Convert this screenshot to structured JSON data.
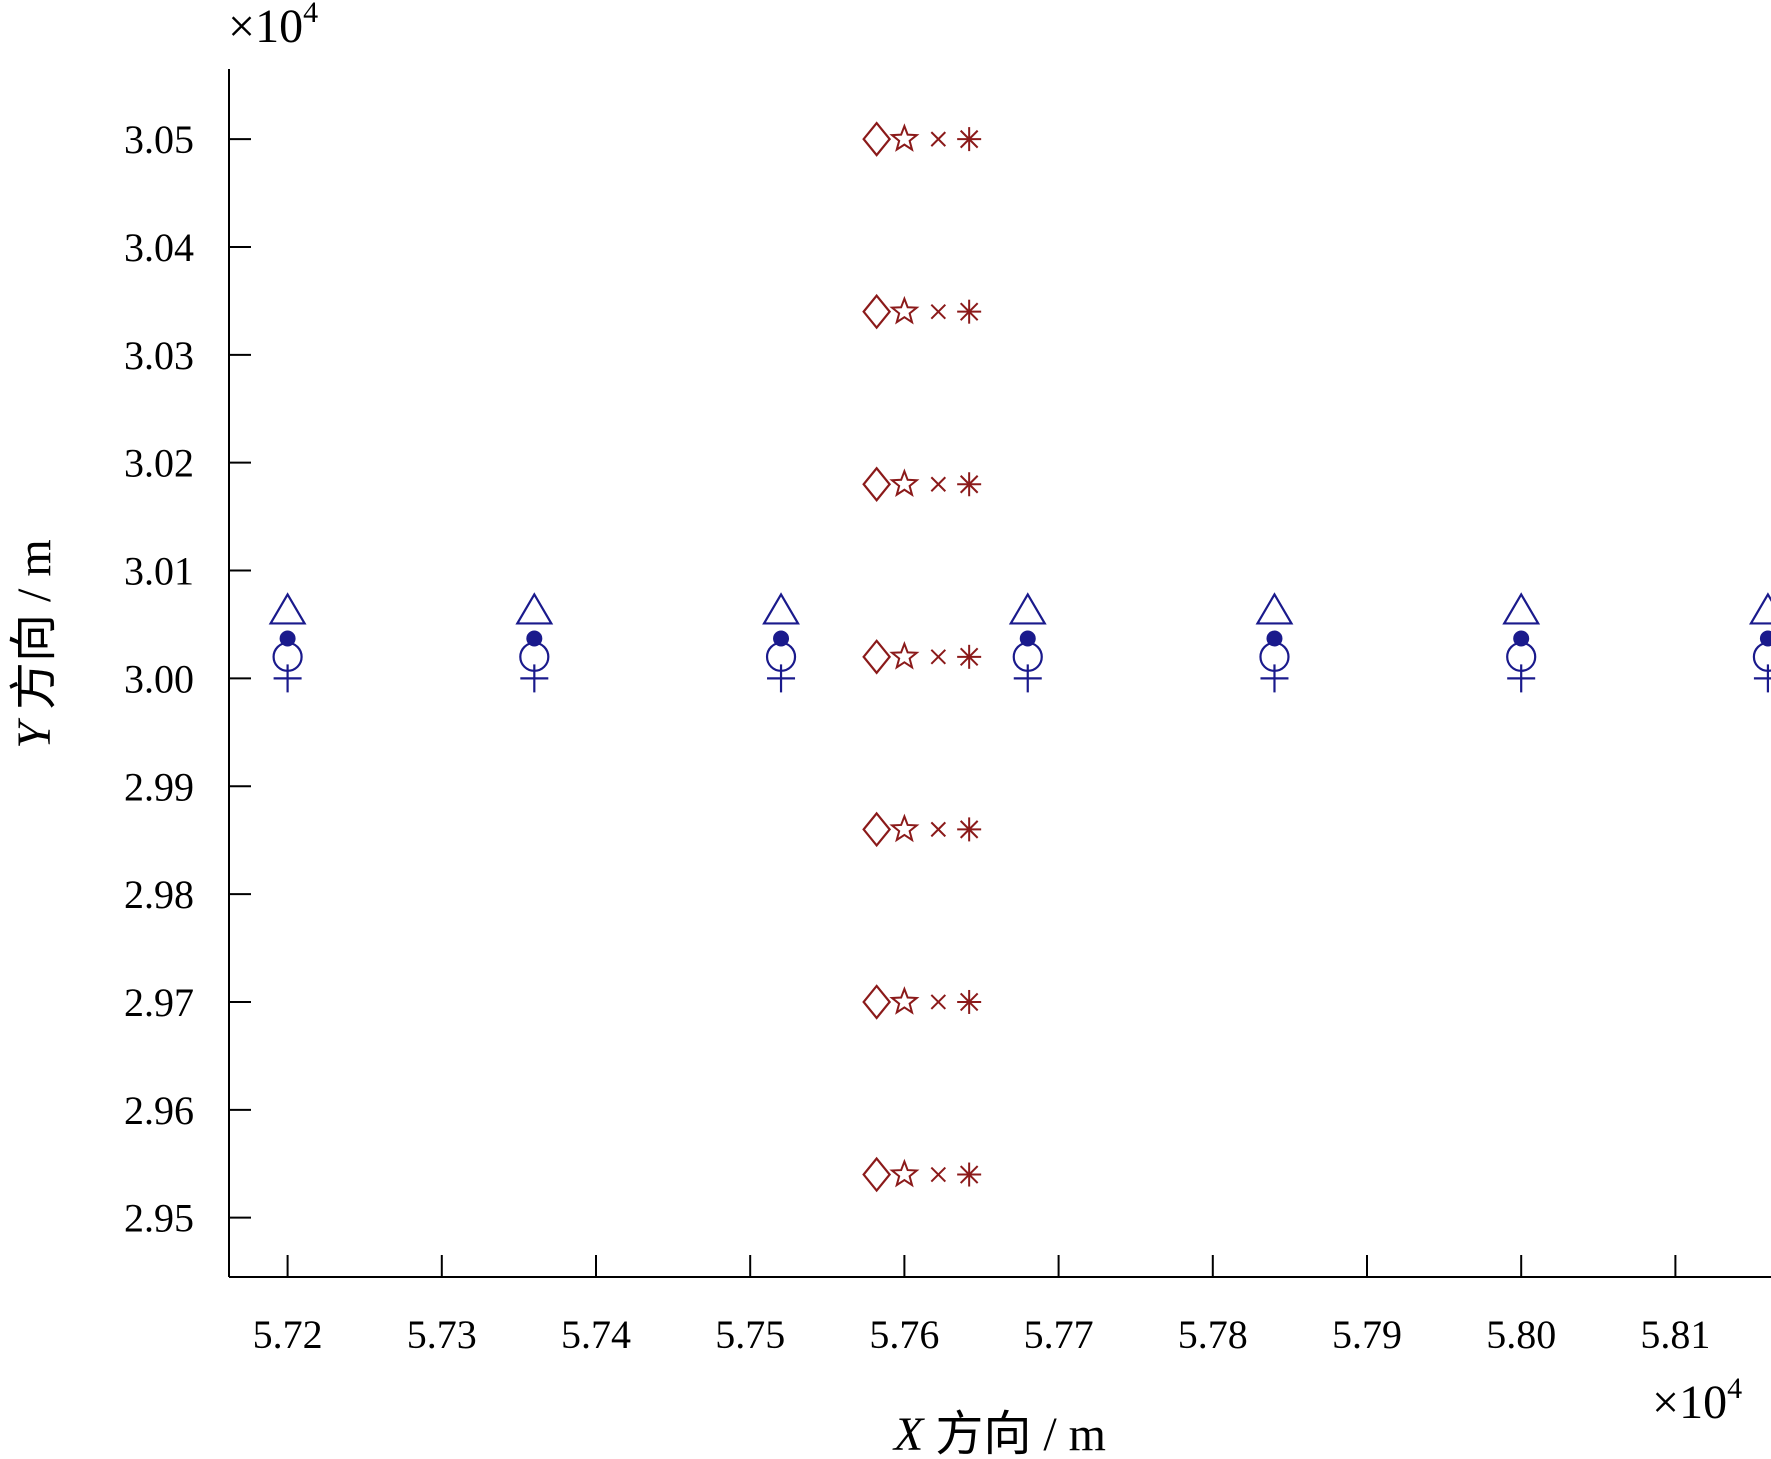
{
  "chart_data": {
    "type": "scatter",
    "title": "",
    "xlabel": {
      "var": "X",
      "text": " 方向 / m"
    },
    "ylabel": {
      "var": "Y",
      "text": " 方向 / m"
    },
    "x_multiplier": {
      "base": "×10",
      "exp": "4"
    },
    "y_multiplier": {
      "base": "×10",
      "exp": "4"
    },
    "xlim": [
      57162,
      58162
    ],
    "ylim": [
      29445,
      30565
    ],
    "x_ticks": [
      57200,
      57300,
      57400,
      57500,
      57600,
      57700,
      57800,
      57900,
      58000,
      58100
    ],
    "x_tick_labels": [
      "5.72",
      "5.73",
      "5.74",
      "5.75",
      "5.76",
      "5.77",
      "5.78",
      "5.79",
      "5.80",
      "5.81"
    ],
    "y_ticks": [
      29500,
      29600,
      29700,
      29800,
      29900,
      30000,
      30100,
      30200,
      30300,
      30400,
      30500
    ],
    "y_tick_labels": [
      "2.95",
      "2.96",
      "2.97",
      "2.98",
      "2.99",
      "3.00",
      "3.01",
      "3.02",
      "3.03",
      "3.04",
      "3.05"
    ],
    "grid": false,
    "legend": "none",
    "series": [
      {
        "marker": "plus",
        "color": "#1a1a8c",
        "x": [
          57200,
          57360,
          57520,
          57680,
          57840,
          58000,
          58160
        ],
        "y": [
          30000,
          30000,
          30000,
          30000,
          30000,
          30000,
          30000
        ]
      },
      {
        "marker": "circle-open",
        "color": "#1a1a8c",
        "x": [
          57200,
          57360,
          57520,
          57680,
          57840,
          58000,
          58160
        ],
        "y": [
          30020,
          30020,
          30020,
          30020,
          30020,
          30020,
          30020
        ]
      },
      {
        "marker": "dot-filled",
        "color": "#1a1a8c",
        "x": [
          57200,
          57360,
          57520,
          57680,
          57840,
          58000,
          58160
        ],
        "y": [
          30037,
          30037,
          30037,
          30037,
          30037,
          30037,
          30037
        ]
      },
      {
        "marker": "triangle-open",
        "color": "#1a1a8c",
        "x": [
          57200,
          57360,
          57520,
          57680,
          57840,
          58000,
          58160
        ],
        "y": [
          30063,
          30063,
          30063,
          30063,
          30063,
          30063,
          30063
        ]
      },
      {
        "marker": "diamond-open",
        "color": "#8b1a1a",
        "x": [
          57582,
          57582,
          57582,
          57582,
          57582,
          57582,
          57582
        ],
        "y": [
          30500,
          30340,
          30180,
          30020,
          29860,
          29700,
          29540
        ]
      },
      {
        "marker": "star-open",
        "color": "#8b1a1a",
        "x": [
          57600,
          57600,
          57600,
          57600,
          57600,
          57600,
          57600
        ],
        "y": [
          30500,
          30340,
          30180,
          30020,
          29860,
          29700,
          29540
        ]
      },
      {
        "marker": "x",
        "color": "#8b1a1a",
        "x": [
          57622,
          57622,
          57622,
          57622,
          57622,
          57622,
          57622
        ],
        "y": [
          30500,
          30340,
          30180,
          30020,
          29860,
          29700,
          29540
        ]
      },
      {
        "marker": "asterisk",
        "color": "#8b1a1a",
        "x": [
          57642,
          57642,
          57642,
          57642,
          57642,
          57642,
          57642
        ],
        "y": [
          30500,
          30340,
          30180,
          30020,
          29860,
          29700,
          29540
        ]
      }
    ]
  }
}
